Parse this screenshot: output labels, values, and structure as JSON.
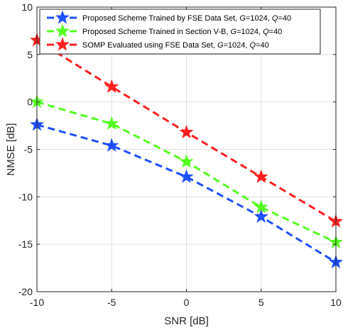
{
  "chart_data": {
    "type": "line",
    "title": "",
    "xlabel": "SNR [dB]",
    "ylabel": "NMSE [dB]",
    "xlim": [
      -10,
      10
    ],
    "ylim": [
      -20,
      10
    ],
    "x": [
      -10,
      -5,
      0,
      5,
      10
    ],
    "xticks": [
      "-10",
      "-5",
      "0",
      "5",
      "10"
    ],
    "yticks": [
      "10",
      "5",
      "0",
      "-5",
      "-10",
      "-15",
      "-20"
    ],
    "grid": true,
    "legend_position": "top-left",
    "series": [
      {
        "name": "Proposed Scheme Trained by FSE Data Set, G=1024, Q=40",
        "legend": {
          "pre": "Proposed Scheme Trained by FSE Data Set, ",
          "g": "G",
          "g_val": "=1024, ",
          "q": "Q",
          "q_val": "=40"
        },
        "values": [
          -2.4,
          -4.6,
          -7.9,
          -12.1,
          -16.9
        ],
        "color": "#1f4fff",
        "marker": "pentagram",
        "line_style": "dashed"
      },
      {
        "name": "Proposed Scheme Trained in Section V-B, G=1024, Q=40",
        "legend": {
          "pre": "Proposed Scheme Trained in Section V-B, ",
          "g": "G",
          "g_val": "=1024, ",
          "q": "Q",
          "q_val": "=40"
        },
        "values": [
          0.0,
          -2.3,
          -6.3,
          -11.1,
          -14.8
        ],
        "color": "#55ff1f",
        "marker": "pentagram",
        "line_style": "dashed"
      },
      {
        "name": "SOMP Evaluated using FSE Data Set, G=1024, Q=40",
        "legend": {
          "pre": "SOMP Evaluated using FSE Data Set, ",
          "g": "G",
          "g_val": "=1024, ",
          "q": "Q",
          "q_val": "=40"
        },
        "values": [
          6.5,
          1.6,
          -3.2,
          -7.9,
          -12.6
        ],
        "color": "#ff1f1f",
        "marker": "pentagram",
        "line_style": "dashed"
      }
    ]
  }
}
